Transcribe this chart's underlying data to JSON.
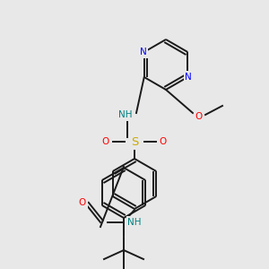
{
  "background_color": "#e8e8e8",
  "colors": {
    "C": "#1a1a1a",
    "N": "#0000ff",
    "O": "#ff0000",
    "S": "#ccaa00",
    "NH": "#008080",
    "bond": "#1a1a1a"
  },
  "bond_lw": 1.4,
  "font_size": 7.5
}
